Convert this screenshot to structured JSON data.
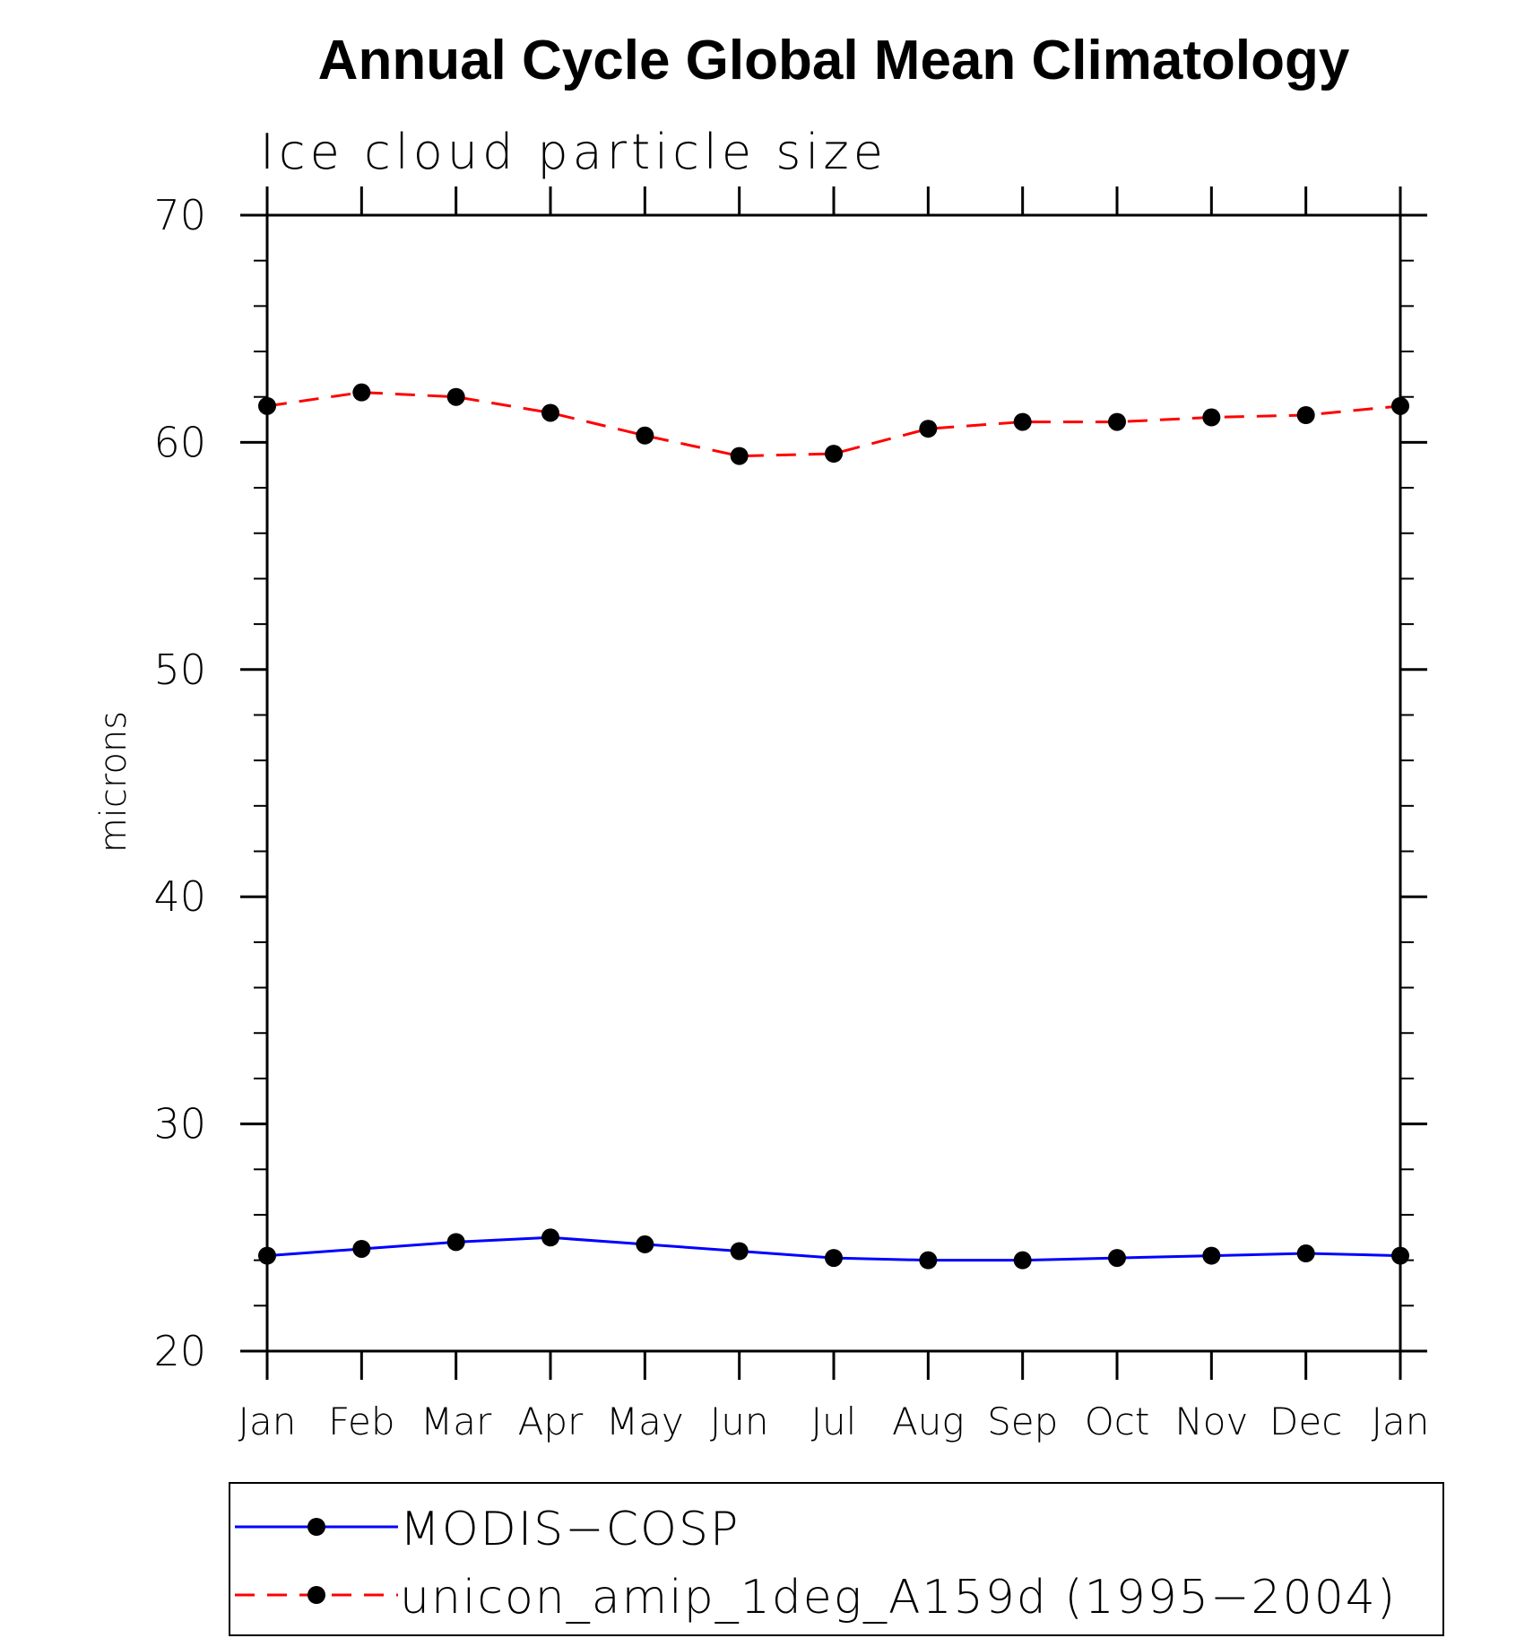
{
  "chart_data": {
    "type": "line",
    "title": "Annual Cycle Global Mean Climatology",
    "subtitle": "Ice cloud particle size",
    "xlabel": "",
    "ylabel": "microns",
    "ylim": [
      20,
      70
    ],
    "yticks": [
      "20",
      "30",
      "40",
      "50",
      "60",
      "70"
    ],
    "categories": [
      "Jan",
      "Feb",
      "Mar",
      "Apr",
      "May",
      "Jun",
      "Jul",
      "Aug",
      "Sep",
      "Oct",
      "Nov",
      "Dec",
      "Jan"
    ],
    "grid": false,
    "legend_position": "bottom",
    "series": [
      {
        "name": "MODIS−COSP",
        "color": "#0000ff",
        "dash": "solid",
        "marker": "filled-circle",
        "values": [
          24.2,
          24.5,
          24.8,
          25.0,
          24.7,
          24.4,
          24.1,
          24.0,
          24.0,
          24.1,
          24.2,
          24.3,
          24.2
        ]
      },
      {
        "name": "unicon_amip_1deg_A159d (1995−2004)",
        "color": "#ff0000",
        "dash": "dashed",
        "marker": "filled-circle",
        "values": [
          61.6,
          62.2,
          62.0,
          61.3,
          60.3,
          59.4,
          59.5,
          60.6,
          60.9,
          60.9,
          61.1,
          61.2,
          61.6
        ]
      }
    ]
  }
}
